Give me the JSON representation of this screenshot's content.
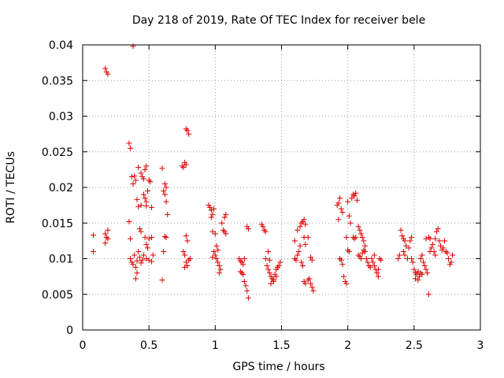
{
  "chart_data": {
    "type": "scatter",
    "title": "Day 218 of 2019, Rate Of TEC Index for receiver bele",
    "xlabel": "GPS time / hours",
    "ylabel": "ROTI / TECUs",
    "xlim": [
      0,
      3
    ],
    "ylim": [
      0,
      0.04
    ],
    "xticks": [
      0,
      0.5,
      1,
      1.5,
      2,
      2.5,
      3
    ],
    "xtick_labels": [
      "0",
      "0.5",
      "1",
      "1.5",
      "2",
      "2.5",
      "3"
    ],
    "yticks": [
      0,
      0.005,
      0.01,
      0.015,
      0.02,
      0.025,
      0.03,
      0.035,
      0.04
    ],
    "ytick_labels": [
      "0",
      "0.005",
      "0.01",
      "0.015",
      "0.02",
      "0.025",
      "0.03",
      "0.035",
      "0.04"
    ],
    "grid": true,
    "marker": "+",
    "color": "#dd0000",
    "series": [
      {
        "name": "ROTI",
        "points": [
          [
            0.08,
            0.0133
          ],
          [
            0.08,
            0.011
          ],
          [
            0.17,
            0.0367
          ],
          [
            0.18,
            0.0362
          ],
          [
            0.19,
            0.0359
          ],
          [
            0.17,
            0.0135
          ],
          [
            0.18,
            0.013
          ],
          [
            0.19,
            0.014
          ],
          [
            0.17,
            0.0122
          ],
          [
            0.19,
            0.0128
          ],
          [
            0.35,
            0.0262
          ],
          [
            0.36,
            0.0255
          ],
          [
            0.35,
            0.0152
          ],
          [
            0.36,
            0.0128
          ],
          [
            0.38,
            0.0398
          ],
          [
            0.37,
            0.0215
          ],
          [
            0.39,
            0.0216
          ],
          [
            0.4,
            0.021
          ],
          [
            0.38,
            0.0205
          ],
          [
            0.41,
            0.0183
          ],
          [
            0.42,
            0.0173
          ],
          [
            0.36,
            0.01
          ],
          [
            0.37,
            0.0095
          ],
          [
            0.38,
            0.0092
          ],
          [
            0.39,
            0.0105
          ],
          [
            0.4,
            0.0088
          ],
          [
            0.41,
            0.0097
          ],
          [
            0.42,
            0.011
          ],
          [
            0.43,
            0.0102
          ],
          [
            0.44,
            0.0094
          ],
          [
            0.45,
            0.0098
          ],
          [
            0.4,
            0.0072
          ],
          [
            0.41,
            0.008
          ],
          [
            0.42,
            0.0228
          ],
          [
            0.44,
            0.022
          ],
          [
            0.45,
            0.0215
          ],
          [
            0.46,
            0.0212
          ],
          [
            0.47,
            0.0225
          ],
          [
            0.48,
            0.023
          ],
          [
            0.46,
            0.019
          ],
          [
            0.47,
            0.0185
          ],
          [
            0.48,
            0.018
          ],
          [
            0.49,
            0.0195
          ],
          [
            0.5,
            0.021
          ],
          [
            0.51,
            0.0208
          ],
          [
            0.44,
            0.0175
          ],
          [
            0.48,
            0.0174
          ],
          [
            0.52,
            0.0172
          ],
          [
            0.43,
            0.0142
          ],
          [
            0.44,
            0.0138
          ],
          [
            0.47,
            0.013
          ],
          [
            0.48,
            0.012
          ],
          [
            0.49,
            0.0115
          ],
          [
            0.5,
            0.0128
          ],
          [
            0.52,
            0.013
          ],
          [
            0.46,
            0.0105
          ],
          [
            0.48,
            0.01
          ],
          [
            0.5,
            0.0098
          ],
          [
            0.52,
            0.0096
          ],
          [
            0.53,
            0.0105
          ],
          [
            0.6,
            0.0227
          ],
          [
            0.61,
            0.0195
          ],
          [
            0.62,
            0.0205
          ],
          [
            0.63,
            0.02
          ],
          [
            0.62,
            0.019
          ],
          [
            0.63,
            0.018
          ],
          [
            0.64,
            0.0162
          ],
          [
            0.62,
            0.0131
          ],
          [
            0.63,
            0.013
          ],
          [
            0.61,
            0.011
          ],
          [
            0.6,
            0.007
          ],
          [
            0.75,
            0.023
          ],
          [
            0.76,
            0.0228
          ],
          [
            0.77,
            0.0235
          ],
          [
            0.78,
            0.0232
          ],
          [
            0.78,
            0.0282
          ],
          [
            0.79,
            0.028
          ],
          [
            0.8,
            0.0275
          ],
          [
            0.76,
            0.011
          ],
          [
            0.77,
            0.0105
          ],
          [
            0.78,
            0.0095
          ],
          [
            0.79,
            0.009
          ],
          [
            0.8,
            0.0098
          ],
          [
            0.81,
            0.01
          ],
          [
            0.78,
            0.0132
          ],
          [
            0.79,
            0.0125
          ],
          [
            0.77,
            0.0088
          ],
          [
            0.95,
            0.0175
          ],
          [
            0.96,
            0.0172
          ],
          [
            0.97,
            0.0168
          ],
          [
            0.98,
            0.0162
          ],
          [
            0.99,
            0.017
          ],
          [
            0.97,
            0.0158
          ],
          [
            0.98,
            0.0138
          ],
          [
            1.0,
            0.0135
          ],
          [
            0.99,
            0.011
          ],
          [
            1.0,
            0.0105
          ],
          [
            0.98,
            0.0102
          ],
          [
            1.01,
            0.01
          ],
          [
            1.02,
            0.0095
          ],
          [
            1.03,
            0.009
          ],
          [
            1.04,
            0.0085
          ],
          [
            1.03,
            0.008
          ],
          [
            1.05,
            0.015
          ],
          [
            1.06,
            0.014
          ],
          [
            1.07,
            0.0138
          ],
          [
            1.08,
            0.0135
          ],
          [
            1.07,
            0.0158
          ],
          [
            1.08,
            0.0162
          ],
          [
            1.01,
            0.0118
          ],
          [
            1.02,
            0.0112
          ],
          [
            1.18,
            0.01
          ],
          [
            1.19,
            0.0097
          ],
          [
            1.2,
            0.0095
          ],
          [
            1.21,
            0.0092
          ],
          [
            1.19,
            0.0082
          ],
          [
            1.2,
            0.008
          ],
          [
            1.21,
            0.0078
          ],
          [
            1.22,
            0.0068
          ],
          [
            1.23,
            0.0062
          ],
          [
            1.24,
            0.0055
          ],
          [
            1.25,
            0.0045
          ],
          [
            1.24,
            0.0145
          ],
          [
            1.25,
            0.0142
          ],
          [
            1.22,
            0.01
          ],
          [
            1.35,
            0.0148
          ],
          [
            1.36,
            0.0145
          ],
          [
            1.37,
            0.014
          ],
          [
            1.38,
            0.0138
          ],
          [
            1.38,
            0.01
          ],
          [
            1.39,
            0.009
          ],
          [
            1.4,
            0.0085
          ],
          [
            1.41,
            0.008
          ],
          [
            1.42,
            0.0075
          ],
          [
            1.43,
            0.0072
          ],
          [
            1.44,
            0.007
          ],
          [
            1.45,
            0.0078
          ],
          [
            1.46,
            0.0085
          ],
          [
            1.47,
            0.0088
          ],
          [
            1.48,
            0.009
          ],
          [
            1.49,
            0.0095
          ],
          [
            1.42,
            0.0065
          ],
          [
            1.44,
            0.0068
          ],
          [
            1.46,
            0.0075
          ],
          [
            1.4,
            0.011
          ],
          [
            1.41,
            0.0098
          ],
          [
            1.6,
            0.01
          ],
          [
            1.61,
            0.0098
          ],
          [
            1.62,
            0.0105
          ],
          [
            1.63,
            0.011
          ],
          [
            1.64,
            0.0118
          ],
          [
            1.6,
            0.0125
          ],
          [
            1.62,
            0.014
          ],
          [
            1.64,
            0.0145
          ],
          [
            1.65,
            0.015
          ],
          [
            1.66,
            0.0152
          ],
          [
            1.67,
            0.0155
          ],
          [
            1.68,
            0.0148
          ],
          [
            1.67,
            0.013
          ],
          [
            1.68,
            0.012
          ],
          [
            1.65,
            0.0095
          ],
          [
            1.66,
            0.009
          ],
          [
            1.67,
            0.0068
          ],
          [
            1.68,
            0.0065
          ],
          [
            1.7,
            0.007
          ],
          [
            1.71,
            0.0072
          ],
          [
            1.72,
            0.0065
          ],
          [
            1.73,
            0.006
          ],
          [
            1.74,
            0.0055
          ],
          [
            1.7,
            0.013
          ],
          [
            1.72,
            0.0102
          ],
          [
            1.73,
            0.0098
          ],
          [
            1.92,
            0.0175
          ],
          [
            1.93,
            0.0178
          ],
          [
            1.94,
            0.0185
          ],
          [
            1.95,
            0.017
          ],
          [
            1.96,
            0.0165
          ],
          [
            1.93,
            0.0155
          ],
          [
            1.94,
            0.01
          ],
          [
            1.95,
            0.0098
          ],
          [
            1.96,
            0.0092
          ],
          [
            1.97,
            0.0075
          ],
          [
            1.98,
            0.0068
          ],
          [
            1.99,
            0.0065
          ],
          [
            2.0,
            0.018
          ],
          [
            2.01,
            0.016
          ],
          [
            2.02,
            0.015
          ],
          [
            1.99,
            0.013
          ],
          [
            2.0,
            0.0112
          ],
          [
            2.01,
            0.011
          ],
          [
            2.03,
            0.0185
          ],
          [
            2.04,
            0.019
          ],
          [
            2.05,
            0.0188
          ],
          [
            2.06,
            0.0192
          ],
          [
            2.07,
            0.0182
          ],
          [
            2.04,
            0.013
          ],
          [
            2.05,
            0.0128
          ],
          [
            2.06,
            0.013
          ],
          [
            2.08,
            0.0145
          ],
          [
            2.09,
            0.014
          ],
          [
            2.1,
            0.0135
          ],
          [
            2.11,
            0.013
          ],
          [
            2.12,
            0.0125
          ],
          [
            2.13,
            0.0118
          ],
          [
            2.08,
            0.0105
          ],
          [
            2.09,
            0.0103
          ],
          [
            2.1,
            0.01
          ],
          [
            2.11,
            0.0108
          ],
          [
            2.12,
            0.0112
          ],
          [
            2.13,
            0.011
          ],
          [
            2.14,
            0.01
          ],
          [
            2.15,
            0.0095
          ],
          [
            2.16,
            0.009
          ],
          [
            2.17,
            0.0088
          ],
          [
            2.18,
            0.01
          ],
          [
            2.19,
            0.0095
          ],
          [
            2.2,
            0.009
          ],
          [
            2.21,
            0.0085
          ],
          [
            2.22,
            0.008
          ],
          [
            2.23,
            0.0085
          ],
          [
            2.24,
            0.01
          ],
          [
            2.25,
            0.0098
          ],
          [
            2.2,
            0.0105
          ],
          [
            2.23,
            0.0075
          ],
          [
            2.38,
            0.01
          ],
          [
            2.39,
            0.0105
          ],
          [
            2.4,
            0.014
          ],
          [
            2.41,
            0.0132
          ],
          [
            2.42,
            0.0128
          ],
          [
            2.43,
            0.0125
          ],
          [
            2.44,
            0.0118
          ],
          [
            2.42,
            0.011
          ],
          [
            2.43,
            0.0105
          ],
          [
            2.45,
            0.01
          ],
          [
            2.46,
            0.0115
          ],
          [
            2.47,
            0.0125
          ],
          [
            2.48,
            0.013
          ],
          [
            2.48,
            0.01
          ],
          [
            2.49,
            0.0095
          ],
          [
            2.5,
            0.0085
          ],
          [
            2.51,
            0.008
          ],
          [
            2.52,
            0.0078
          ],
          [
            2.53,
            0.0082
          ],
          [
            2.54,
            0.0075
          ],
          [
            2.55,
            0.008
          ],
          [
            2.56,
            0.0078
          ],
          [
            2.51,
            0.0072
          ],
          [
            2.53,
            0.007
          ],
          [
            2.55,
            0.01
          ],
          [
            2.56,
            0.0105
          ],
          [
            2.57,
            0.0095
          ],
          [
            2.58,
            0.009
          ],
          [
            2.59,
            0.0085
          ],
          [
            2.6,
            0.008
          ],
          [
            2.61,
            0.013
          ],
          [
            2.62,
            0.0128
          ],
          [
            2.62,
            0.011
          ],
          [
            2.63,
            0.0115
          ],
          [
            2.64,
            0.012
          ],
          [
            2.65,
            0.011
          ],
          [
            2.66,
            0.0105
          ],
          [
            2.67,
            0.0138
          ],
          [
            2.68,
            0.0142
          ],
          [
            2.69,
            0.0125
          ],
          [
            2.7,
            0.0118
          ],
          [
            2.71,
            0.0112
          ],
          [
            2.72,
            0.0115
          ],
          [
            2.73,
            0.0125
          ],
          [
            2.74,
            0.011
          ],
          [
            2.75,
            0.0108
          ],
          [
            2.76,
            0.01
          ],
          [
            2.77,
            0.0092
          ],
          [
            2.78,
            0.0095
          ],
          [
            2.79,
            0.0105
          ],
          [
            2.61,
            0.005
          ],
          [
            2.59,
            0.0128
          ],
          [
            2.66,
            0.0128
          ]
        ]
      }
    ]
  }
}
